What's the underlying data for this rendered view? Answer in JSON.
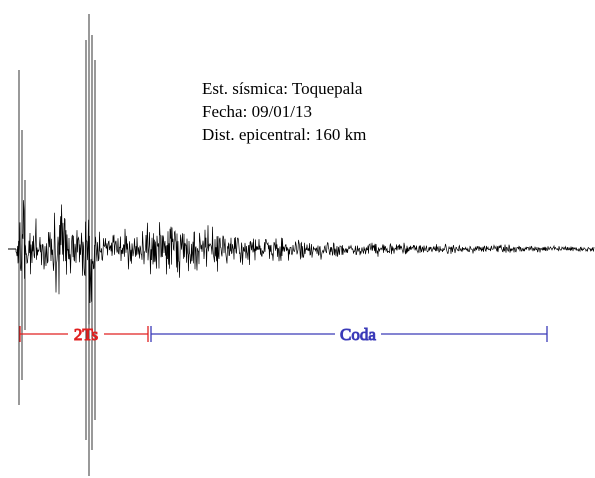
{
  "info": {
    "station": "Est. sísmica: Toquepala",
    "date": "Fecha: 09/01/13",
    "distance": "Dist. epicentral: 160 km"
  },
  "colors": {
    "trace": "#000000",
    "ts_segment": "#e02020",
    "coda_segment": "#3a3ab8"
  },
  "chart_data": {
    "type": "line",
    "title": "",
    "xlabel": "",
    "ylabel": "",
    "grid": false,
    "legend": "none",
    "series": [
      {
        "kind": "seismogram-trace"
      }
    ],
    "segments": [
      {
        "label": "2Ts",
        "color": "#e02020"
      },
      {
        "label": "Coda",
        "color": "#3a3ab8"
      }
    ]
  }
}
